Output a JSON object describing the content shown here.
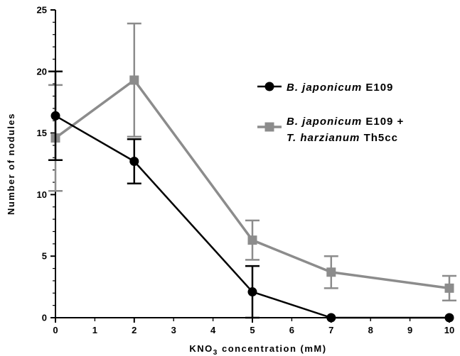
{
  "chart_data": {
    "type": "line",
    "xlabel": {
      "pre": "KNO",
      "sub": "3",
      "post": " concentration (mM)"
    },
    "ylabel": "Number of nodules",
    "xlim": [
      0,
      10
    ],
    "ylim": [
      0,
      25
    ],
    "x_ticks_major": [
      0,
      2,
      5,
      7,
      10
    ],
    "x_ticks_minor": [
      1,
      3,
      4,
      6,
      8,
      9
    ],
    "y_ticks_major": [
      0,
      5,
      10,
      15,
      20,
      25
    ],
    "grid": false,
    "legend_position": "right",
    "series": [
      {
        "name": "B. japonicum E109",
        "name_parts": [
          {
            "text": "B. japonicum",
            "italic": true
          },
          {
            "text": " E109",
            "italic": false
          }
        ],
        "marker": "circle",
        "color": "#000000",
        "x": [
          0,
          2,
          5,
          7,
          10
        ],
        "y": [
          16.4,
          12.7,
          2.1,
          0,
          0
        ],
        "error": [
          3.6,
          1.8,
          2.1,
          0,
          0
        ]
      },
      {
        "name": "B. japonicum E109 + T. harzianum Th5cc",
        "name_parts": [
          {
            "text": "B. japonicum",
            "italic": true
          },
          {
            "text": " E109 +",
            "italic": false
          }
        ],
        "name_parts_line2": [
          {
            "text": "T. harzianum",
            "italic": true
          },
          {
            "text": " Th5cc",
            "italic": false
          }
        ],
        "marker": "square",
        "color": "#8c8c8c",
        "x": [
          0,
          2,
          5,
          7,
          10
        ],
        "y": [
          14.6,
          19.3,
          6.3,
          3.7,
          2.4
        ],
        "error": [
          4.3,
          4.6,
          1.6,
          1.3,
          1.0
        ]
      }
    ]
  }
}
